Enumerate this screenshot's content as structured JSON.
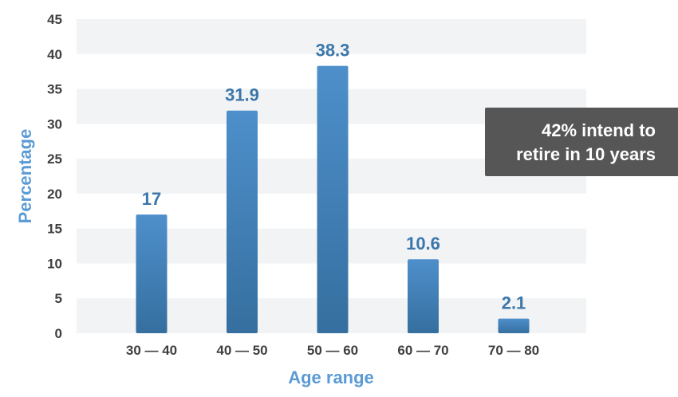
{
  "colors": {
    "bar_top": "#4e8fcb",
    "bar_bottom": "#356f9f",
    "label": "#3b77aa",
    "axis_title": "#5b9bd5",
    "band": "#f1f3f5",
    "tick": "#3f3f3f",
    "callout_bg": "#565656",
    "callout_text": "#ffffff"
  },
  "callout": {
    "line1": "42% intend to",
    "line2": "retire in 10 years"
  },
  "chart_data": {
    "type": "bar",
    "title": "",
    "xlabel": "Age range",
    "ylabel": "Percentage",
    "categories": [
      "30 — 40",
      "40 — 50",
      "50 — 60",
      "60 — 70",
      "70 — 80"
    ],
    "values": [
      17,
      31.9,
      38.3,
      10.6,
      2.1
    ],
    "value_labels": [
      "17",
      "31.9",
      "38.3",
      "10.6",
      "2.1"
    ],
    "ylim": [
      0,
      45
    ],
    "yticks": [
      0,
      5,
      10,
      15,
      20,
      25,
      30,
      35,
      40,
      45
    ],
    "grid": "alternating horizontal bands",
    "legend": "none"
  }
}
